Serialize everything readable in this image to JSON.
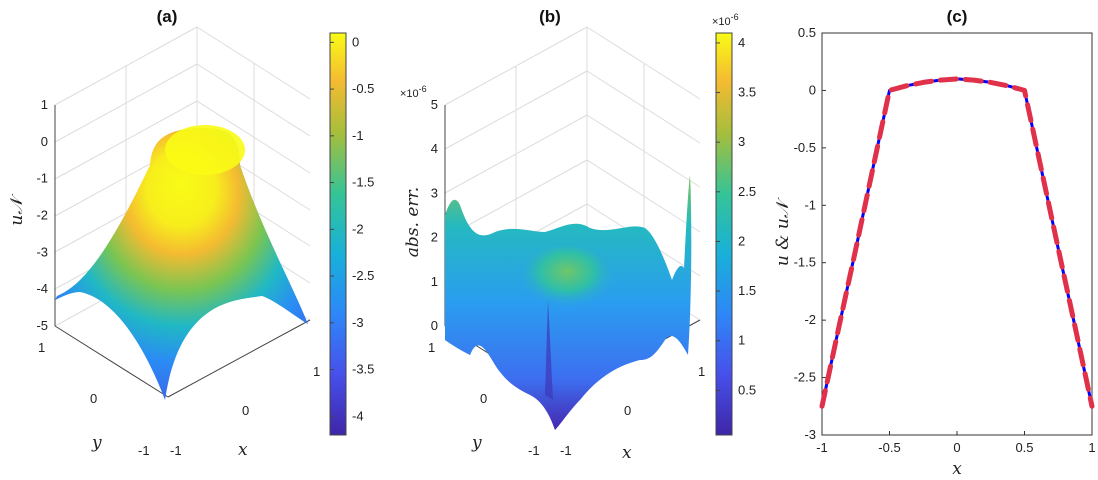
{
  "chart_data": [
    {
      "type": "surface",
      "title": "(a)",
      "zlabel": "u𝒩",
      "xlabel": "x",
      "ylabel": "y",
      "xlim": [
        -1,
        1
      ],
      "ylim": [
        -1,
        1
      ],
      "zlim": [
        -5,
        1
      ],
      "x_ticks": [
        "-1",
        "0",
        "1"
      ],
      "y_ticks": [
        "-1",
        "0",
        "1"
      ],
      "z_ticks": [
        "-5",
        "-4",
        "-3",
        "-2",
        "-1",
        "0",
        "1"
      ],
      "colormap": "parula",
      "colorbar_ticks": [
        "0",
        "-0.5",
        "-1",
        "-1.5",
        "-2",
        "-2.5",
        "-3",
        "-3.5",
        "-4"
      ],
      "colorbar_range": [
        -4.2,
        0.1
      ]
    },
    {
      "type": "surface",
      "title": "(b)",
      "zlabel": "abs. err.",
      "xlabel": "x",
      "ylabel": "y",
      "z_exponent": "×10",
      "z_exponent_power": "-6",
      "xlim": [
        -1,
        1
      ],
      "ylim": [
        -1,
        1
      ],
      "zlim": [
        0,
        5
      ],
      "x_ticks": [
        "-1",
        "0",
        "1"
      ],
      "y_ticks": [
        "-1",
        "0",
        "1"
      ],
      "z_ticks": [
        "0",
        "1",
        "2",
        "3",
        "4",
        "5"
      ],
      "colormap": "parula",
      "colorbar_exponent": "×10",
      "colorbar_exponent_power": "-6",
      "colorbar_ticks": [
        "4",
        "3.5",
        "3",
        "2.5",
        "2",
        "1.5",
        "1",
        "0.5"
      ],
      "colorbar_range": [
        0.05,
        4.1
      ]
    },
    {
      "type": "line",
      "title": "(c)",
      "xlabel": "x",
      "ylabel": "u & u𝒩",
      "xlim": [
        -1,
        1
      ],
      "ylim": [
        -3,
        0.5
      ],
      "x_ticks": [
        "-1",
        "-0.5",
        "0",
        "0.5",
        "1"
      ],
      "y_ticks": [
        "0.5",
        "0",
        "-0.5",
        "-1",
        "-1.5",
        "-2",
        "-2.5",
        "-3"
      ],
      "x": [
        -1,
        -0.875,
        -0.75,
        -0.625,
        -0.5,
        -0.375,
        -0.25,
        -0.125,
        0,
        0.125,
        0.25,
        0.375,
        0.5,
        0.625,
        0.75,
        0.875,
        1
      ],
      "series": [
        {
          "style": "solid",
          "color": "#0000ff",
          "values": [
            -2.75,
            -2.06,
            -1.38,
            -0.69,
            0.0,
            0.04,
            0.07,
            0.09,
            0.1,
            0.09,
            0.07,
            0.04,
            0.0,
            -0.69,
            -1.38,
            -2.06,
            -2.75
          ]
        },
        {
          "style": "dashed",
          "color": "#e0304a",
          "values": [
            -2.75,
            -2.06,
            -1.38,
            -0.69,
            0.0,
            0.04,
            0.07,
            0.09,
            0.1,
            0.09,
            0.07,
            0.04,
            0.0,
            -0.69,
            -1.38,
            -2.06,
            -2.75
          ]
        }
      ]
    }
  ]
}
